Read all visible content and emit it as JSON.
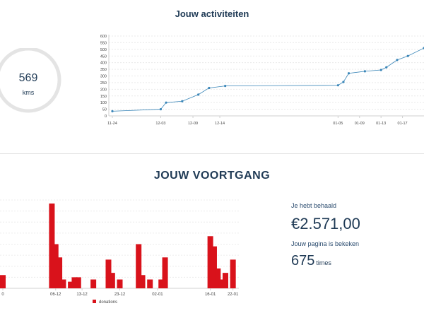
{
  "activities": {
    "title": "Jouw activiteiten",
    "distance_value": "569",
    "distance_unit": "kms",
    "ring_color": "#e4e4e4"
  },
  "progress": {
    "title": "JOUW VOORTGANG",
    "raised_label": "Je hebt behaald",
    "raised_value": "€2.571,00",
    "views_label": "Jouw pagina is bekeken",
    "views_value": "675",
    "views_unit": "times"
  },
  "chart_data": [
    {
      "type": "line",
      "title": "",
      "color": "#3a86b8",
      "ylim": [
        0,
        600
      ],
      "yticks": [
        0,
        50,
        100,
        150,
        200,
        250,
        300,
        350,
        400,
        450,
        500,
        550,
        600
      ],
      "xticks": [
        "11-24",
        "12-03",
        "12-09",
        "12-14",
        "01-05",
        "01-09",
        "01-13",
        "01-17"
      ],
      "xtick_days": [
        0,
        9,
        15,
        20,
        42,
        46,
        50,
        54
      ],
      "x_days": [
        0,
        9,
        10,
        13,
        16,
        18,
        21,
        42,
        43,
        44,
        47,
        50,
        51,
        53,
        55,
        58
      ],
      "y": [
        35,
        50,
        100,
        110,
        160,
        210,
        225,
        230,
        255,
        320,
        335,
        345,
        365,
        420,
        450,
        510
      ],
      "grid": true
    },
    {
      "type": "bar",
      "title": "",
      "color": "#d9121b",
      "series_name": "donations",
      "legend_position": "bottom",
      "ylim": [
        0,
        200
      ],
      "grid": true,
      "xticks": [
        "0",
        "06-12",
        "13-12",
        "23-12",
        "02-01",
        "16-01",
        "22-01"
      ],
      "xtick_days": [
        -1,
        13,
        20,
        30,
        40,
        54,
        60
      ],
      "bars_days": [
        -1,
        12,
        13,
        14,
        15,
        17,
        18,
        19,
        23,
        27,
        28,
        30,
        35,
        36,
        38,
        41,
        42,
        54,
        55,
        56,
        57,
        58,
        60
      ],
      "values": [
        30,
        192,
        100,
        70,
        20,
        15,
        25,
        25,
        20,
        65,
        35,
        20,
        100,
        30,
        20,
        20,
        70,
        118,
        95,
        45,
        20,
        35,
        65
      ]
    }
  ]
}
